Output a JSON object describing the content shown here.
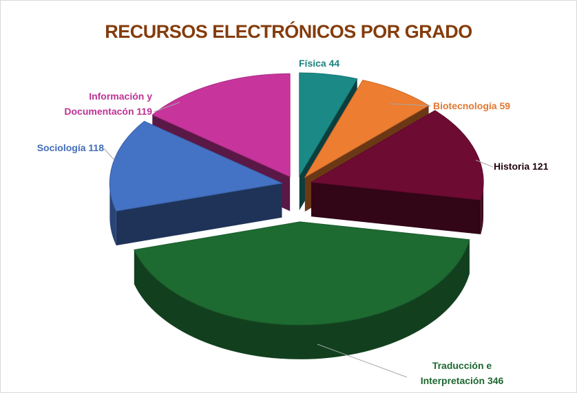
{
  "chart_data": {
    "type": "pie3d",
    "title": "RECURSOS ELECTRÓNICOS POR GRADO",
    "categories": [
      "Física",
      "Biotecnología",
      "Historia",
      "Traducción e Interpretación",
      "Sociología",
      "Información y Documentacón"
    ],
    "values": [
      44,
      59,
      121,
      346,
      118,
      119
    ],
    "colors": [
      "#1b8a87",
      "#ed7d31",
      "#6e0b32",
      "#1e6b32",
      "#4472c4",
      "#c7359c"
    ]
  }
}
